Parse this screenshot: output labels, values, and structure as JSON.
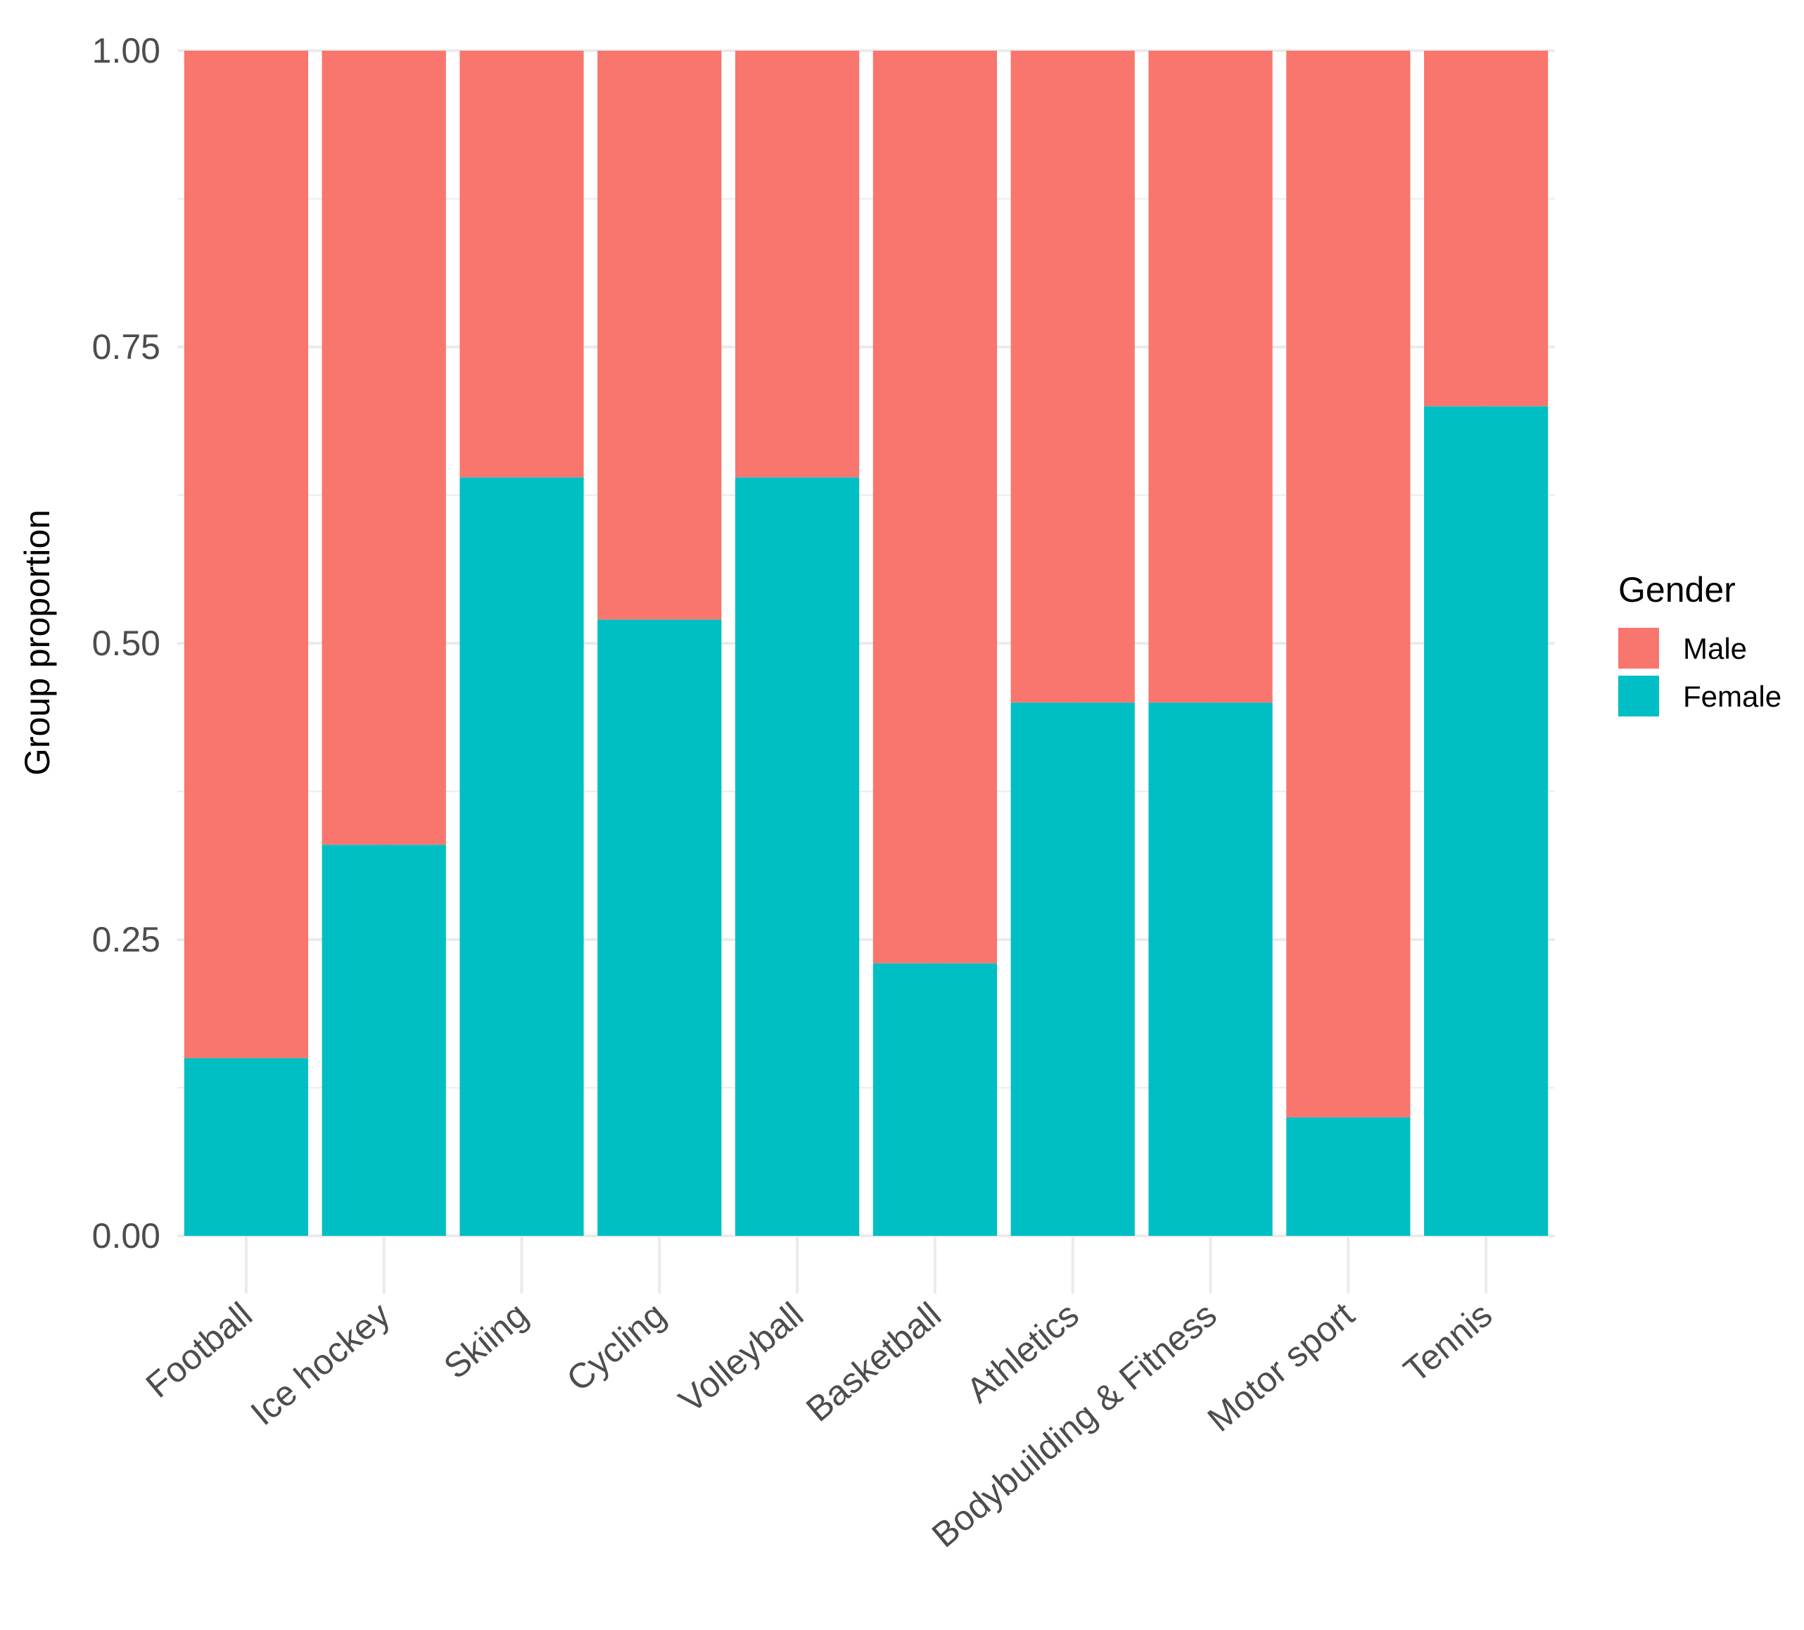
{
  "chart_data": {
    "type": "bar",
    "stacked": true,
    "title": "",
    "xlabel": "",
    "ylabel": "Group proportion",
    "ylim": [
      0,
      1
    ],
    "yticks": [
      "0.00",
      "0.25",
      "0.50",
      "0.75",
      "1.00"
    ],
    "categories": [
      "Football",
      "Ice hockey",
      "Skiing",
      "Cycling",
      "Volleyball",
      "Basketball",
      "Athletics",
      "Bodybuilding & Fitness",
      "Motor sport",
      "Tennis"
    ],
    "series": [
      {
        "name": "Female",
        "color": "#00BFC4",
        "values": [
          0.15,
          0.33,
          0.64,
          0.52,
          0.64,
          0.23,
          0.45,
          0.45,
          0.1,
          0.7
        ]
      },
      {
        "name": "Male",
        "color": "#F8766D",
        "values": [
          0.85,
          0.67,
          0.36,
          0.48,
          0.36,
          0.77,
          0.55,
          0.55,
          0.9,
          0.3
        ]
      }
    ],
    "legend": {
      "title": "Gender",
      "position": "right",
      "entries": [
        {
          "label": "Male",
          "color": "#F8766D"
        },
        {
          "label": "Female",
          "color": "#00BFC4"
        }
      ]
    }
  }
}
